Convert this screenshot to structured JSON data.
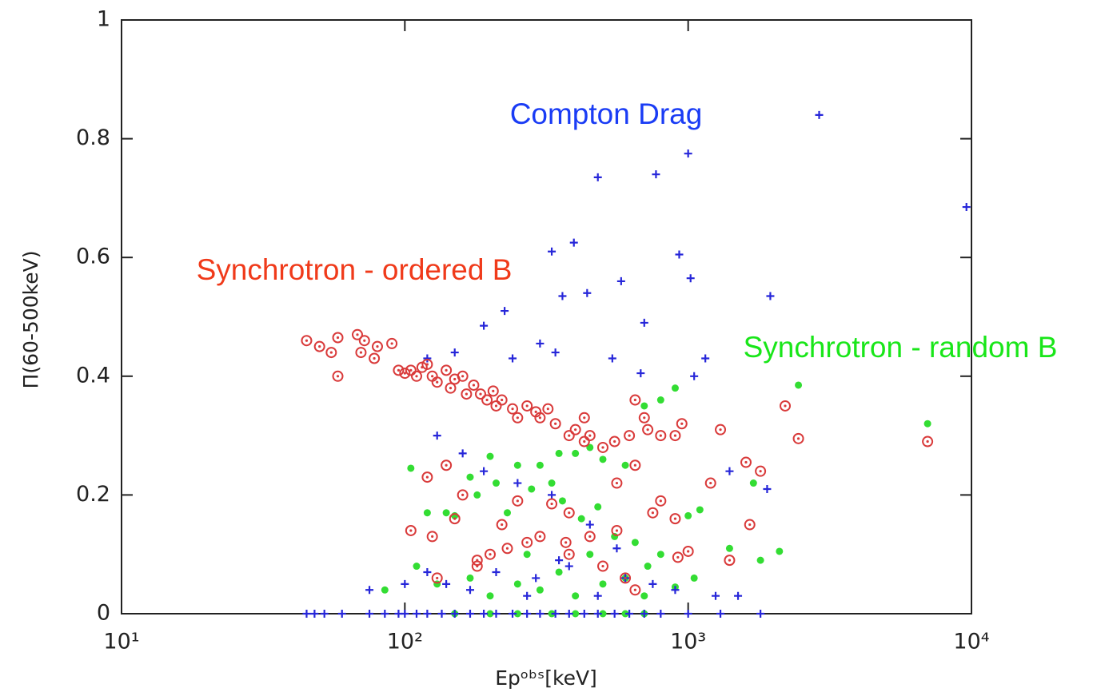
{
  "chart_data": {
    "type": "scatter",
    "xlabel": "Epᵒᵇˢ[keV]",
    "ylabel": "Π(60-500keV)",
    "xscale": "log",
    "xlim": [
      10,
      10000
    ],
    "ylim": [
      0,
      1
    ],
    "xticks": [
      {
        "value": 10,
        "label": "10¹"
      },
      {
        "value": 100,
        "label": "10²"
      },
      {
        "value": 1000,
        "label": "10³"
      },
      {
        "value": 10000,
        "label": "10⁴"
      }
    ],
    "yticks": [
      0,
      0.2,
      0.4,
      0.6,
      0.8,
      1
    ],
    "grid": false,
    "series": [
      {
        "name": "Compton Drag",
        "color": "#2626d9",
        "label_color": "#1a3cf5",
        "marker": "plus",
        "x": [
          2900,
          9600,
          1000,
          770,
          480,
          330,
          395,
          930,
          1020,
          580,
          700,
          1950,
          190,
          225,
          360,
          440,
          1150,
          300,
          340,
          240,
          150,
          120,
          540,
          680,
          1050,
          130,
          160,
          190,
          250,
          330,
          450,
          560,
          380,
          210,
          120,
          140,
          170,
          290,
          350,
          480,
          900,
          1500,
          1400,
          1900,
          1250,
          75,
          100,
          270,
          600,
          750,
          45,
          48,
          52,
          60,
          75,
          85,
          95,
          100,
          110,
          120,
          135,
          150,
          170,
          190,
          210,
          240,
          270,
          300,
          340,
          380,
          430,
          480,
          550,
          620,
          700,
          800,
          1000,
          1300,
          1800
        ],
        "y": [
          0.84,
          0.685,
          0.775,
          0.74,
          0.735,
          0.61,
          0.625,
          0.605,
          0.565,
          0.56,
          0.49,
          0.535,
          0.485,
          0.51,
          0.535,
          0.54,
          0.43,
          0.455,
          0.44,
          0.43,
          0.44,
          0.43,
          0.43,
          0.405,
          0.4,
          0.3,
          0.27,
          0.24,
          0.22,
          0.2,
          0.15,
          0.11,
          0.08,
          0.07,
          0.07,
          0.05,
          0.04,
          0.06,
          0.09,
          0.03,
          0.04,
          0.03,
          0.24,
          0.21,
          0.03,
          0.04,
          0.05,
          0.03,
          0.06,
          0.05,
          0,
          0,
          0,
          0,
          0,
          0,
          0,
          0,
          0,
          0,
          0,
          0,
          0,
          0,
          0,
          0,
          0,
          0,
          0,
          0,
          0,
          0,
          0,
          0,
          0,
          0,
          0,
          0,
          0
        ]
      },
      {
        "name": "Synchrotron - ordered B",
        "color": "#d93a3a",
        "label_color": "#f03a1a",
        "marker": "ring",
        "x": [
          45,
          50,
          55,
          58,
          58,
          68,
          70,
          72,
          78,
          80,
          90,
          95,
          100,
          105,
          110,
          115,
          120,
          125,
          130,
          140,
          145,
          150,
          160,
          165,
          175,
          185,
          195,
          205,
          210,
          220,
          240,
          250,
          270,
          290,
          300,
          320,
          340,
          380,
          400,
          430,
          450,
          500,
          550,
          620,
          650,
          700,
          720,
          800,
          900,
          950,
          1300,
          2200,
          2450,
          7000,
          1200,
          1800,
          1600,
          1650,
          1400,
          1000,
          920,
          900,
          800,
          750,
          650,
          560,
          430,
          380,
          330,
          300,
          250,
          220,
          200,
          180,
          160,
          140,
          120,
          105,
          125,
          150,
          230,
          270,
          370,
          380,
          450,
          560,
          600,
          650,
          500,
          130,
          180
        ],
        "y": [
          0.46,
          0.45,
          0.44,
          0.465,
          0.4,
          0.47,
          0.44,
          0.46,
          0.43,
          0.45,
          0.455,
          0.41,
          0.405,
          0.41,
          0.4,
          0.415,
          0.42,
          0.4,
          0.39,
          0.41,
          0.38,
          0.395,
          0.4,
          0.37,
          0.385,
          0.37,
          0.36,
          0.375,
          0.35,
          0.36,
          0.345,
          0.33,
          0.35,
          0.34,
          0.33,
          0.345,
          0.32,
          0.3,
          0.31,
          0.29,
          0.3,
          0.28,
          0.29,
          0.3,
          0.36,
          0.33,
          0.31,
          0.3,
          0.3,
          0.32,
          0.31,
          0.35,
          0.295,
          0.29,
          0.22,
          0.24,
          0.255,
          0.15,
          0.09,
          0.105,
          0.095,
          0.16,
          0.19,
          0.17,
          0.25,
          0.22,
          0.33,
          0.17,
          0.185,
          0.13,
          0.19,
          0.15,
          0.1,
          0.09,
          0.2,
          0.25,
          0.23,
          0.14,
          0.13,
          0.16,
          0.11,
          0.12,
          0.12,
          0.1,
          0.13,
          0.14,
          0.06,
          0.04,
          0.08,
          0.06,
          0.08
        ]
      },
      {
        "name": "Synchrotron - random B",
        "color": "#33dd33",
        "label_color": "#19e619",
        "marker": "dot",
        "x": [
          7000,
          2450,
          1100,
          1000,
          800,
          700,
          900,
          600,
          500,
          450,
          400,
          350,
          300,
          250,
          200,
          170,
          140,
          105,
          120,
          150,
          180,
          210,
          230,
          280,
          330,
          360,
          420,
          480,
          550,
          650,
          720,
          800,
          1050,
          1400,
          1700,
          2100,
          1800,
          900,
          700,
          500,
          400,
          300,
          250,
          200,
          170,
          130,
          110,
          85,
          270,
          350,
          450,
          600,
          330,
          400,
          500,
          600,
          700,
          200,
          250,
          150
        ],
        "y": [
          0.32,
          0.385,
          0.175,
          0.165,
          0.36,
          0.35,
          0.38,
          0.25,
          0.26,
          0.28,
          0.27,
          0.27,
          0.25,
          0.25,
          0.265,
          0.23,
          0.17,
          0.245,
          0.17,
          0.165,
          0.2,
          0.22,
          0.17,
          0.21,
          0.22,
          0.19,
          0.16,
          0.18,
          0.13,
          0.12,
          0.08,
          0.1,
          0.06,
          0.11,
          0.22,
          0.105,
          0.09,
          0.045,
          0.03,
          0.05,
          0.03,
          0.04,
          0.05,
          0.03,
          0.06,
          0.05,
          0.08,
          0.04,
          0.1,
          0.07,
          0.1,
          0.06,
          0,
          0,
          0,
          0,
          0,
          0,
          0,
          0
        ]
      }
    ]
  }
}
